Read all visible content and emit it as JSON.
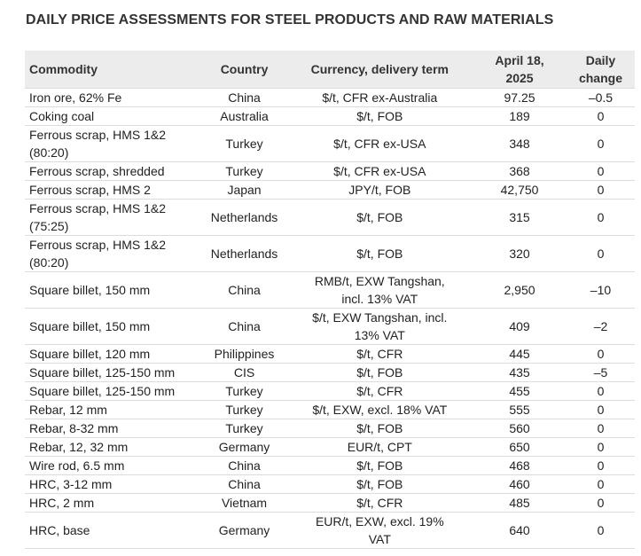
{
  "title": "DAILY PRICE ASSESSMENTS FOR STEEL PRODUCTS AND RAW MATERIALS",
  "headers": [
    "Commodity",
    "Country",
    "Currency, delivery term",
    "April 18, 2025",
    "Daily change"
  ],
  "rows": [
    [
      "Iron ore, 62% Fe",
      "China",
      "$/t, CFR ex-Australia",
      "97.25",
      "–0.5"
    ],
    [
      "Coking coal",
      "Australia",
      "$/t, FOB",
      "189",
      "0"
    ],
    [
      "Ferrous scrap, HMS 1&2 (80:20)",
      "Turkey",
      "$/t, CFR ex-USA",
      "348",
      "0"
    ],
    [
      "Ferrous scrap, shredded",
      "Turkey",
      "$/t, CFR ex-USA",
      "368",
      "0"
    ],
    [
      "Ferrous scrap, HMS 2",
      "Japan",
      "JPY/t, FOB",
      "42,750",
      "0"
    ],
    [
      "Ferrous scrap, HMS 1&2 (75:25)",
      "Netherlands",
      "$/t, FOB",
      "315",
      "0"
    ],
    [
      "Ferrous scrap, HMS 1&2 (80:20)",
      "Netherlands",
      "$/t, FOB",
      "320",
      "0"
    ],
    [
      "Square billet, 150 mm",
      "China",
      "RMB/t, EXW Tangshan, incl. 13% VAT",
      "2,950",
      "–10"
    ],
    [
      "Square billet, 150 mm",
      "China",
      "$/t, EXW Tangshan, incl. 13% VAT",
      "409",
      "–2"
    ],
    [
      "Square billet, 120 mm",
      "Philippines",
      "$/t, CFR",
      "445",
      "0"
    ],
    [
      "Square billet, 125-150 mm",
      "CIS",
      "$/t, FOB",
      "435",
      "–5"
    ],
    [
      "Square billet, 125-150 mm",
      "Turkey",
      "$/t, CFR",
      "455",
      "0"
    ],
    [
      "Rebar, 12 mm",
      "Turkey",
      "$/t, EXW, excl. 18% VAT",
      "555",
      "0"
    ],
    [
      "Rebar, 8-32 mm",
      "Turkey",
      "$/t, FOB",
      "560",
      "0"
    ],
    [
      "Rebar, 12, 32 mm",
      "Germany",
      "EUR/t, CPT",
      "650",
      "0"
    ],
    [
      "Wire rod, 6.5 mm",
      "China",
      "$/t, FOB",
      "468",
      "0"
    ],
    [
      "HRC, 3-12 mm",
      "China",
      "$/t, FOB",
      "460",
      "0"
    ],
    [
      "HRC, 2 mm",
      "Vietnam",
      "$/t, CFR",
      "485",
      "0"
    ],
    [
      "HRC, base",
      "Germany",
      "EUR/t, EXW, excl. 19% VAT",
      "640",
      "0"
    ]
  ]
}
